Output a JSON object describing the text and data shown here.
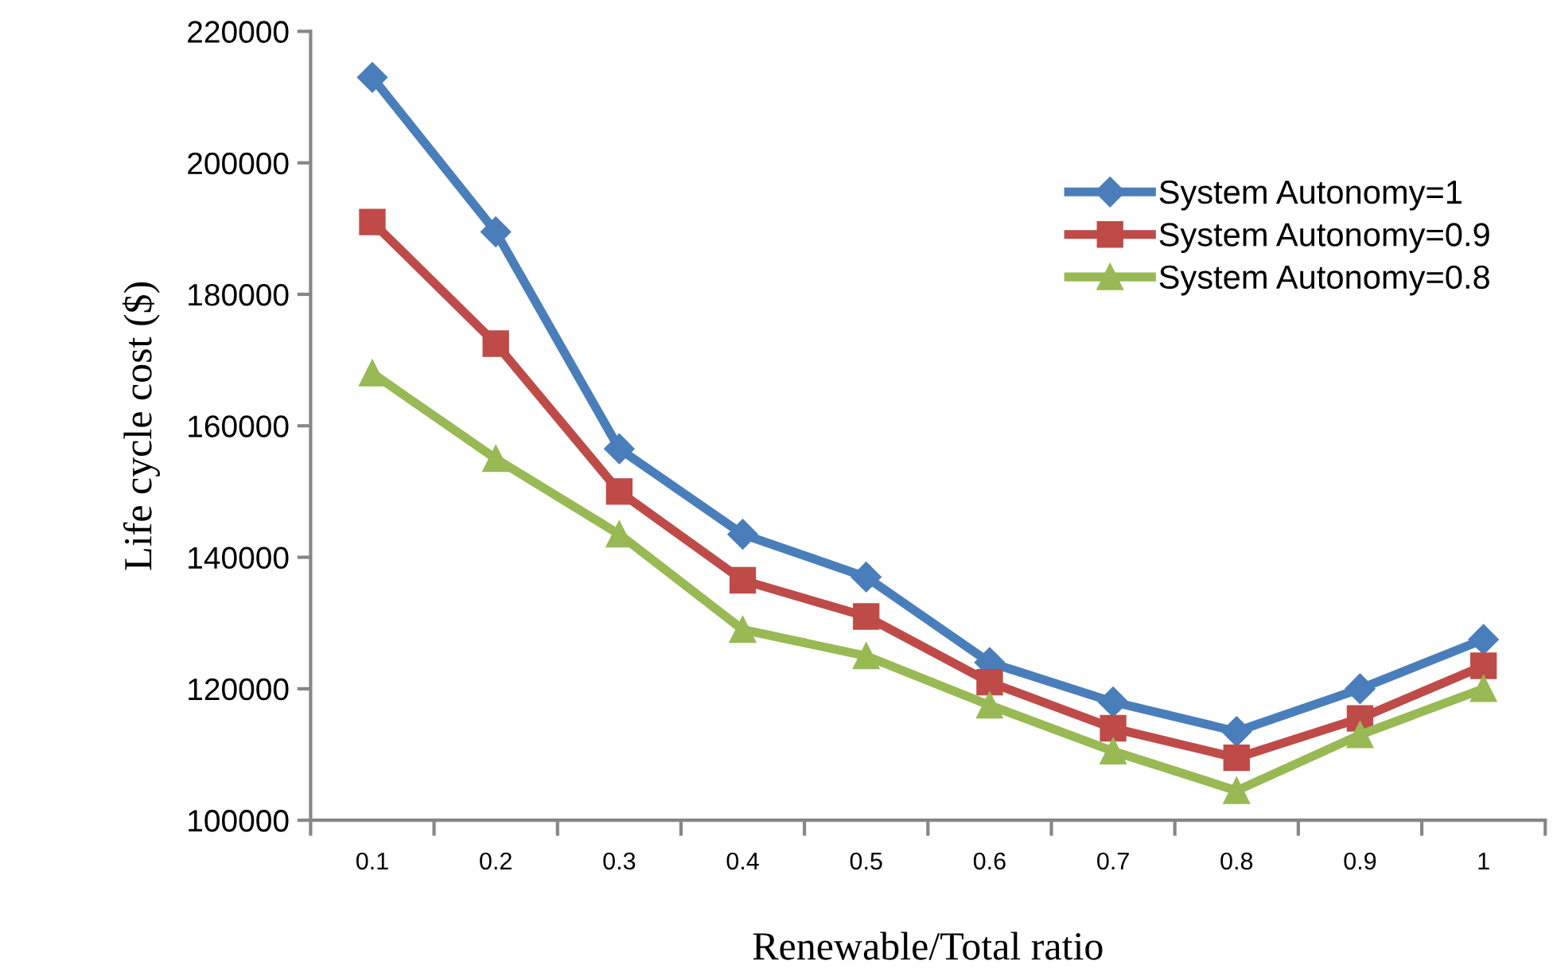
{
  "chart_data": {
    "type": "line",
    "xlabel": "Renewable/Total ratio",
    "ylabel": "Life cycle cost ($)",
    "categories": [
      "0.1",
      "0.2",
      "0.3",
      "0.4",
      "0.5",
      "0.6",
      "0.7",
      "0.8",
      "0.9",
      "1"
    ],
    "series": [
      {
        "name": "System Autonomy=1",
        "color": "#4a7ebb",
        "marker": "diamond",
        "values": [
          213000,
          189500,
          156500,
          143500,
          137000,
          124000,
          118000,
          113500,
          120000,
          127500
        ]
      },
      {
        "name": "System Autonomy=0.9",
        "color": "#be4b48",
        "marker": "square",
        "values": [
          191000,
          172500,
          150000,
          136500,
          131000,
          121000,
          114000,
          109500,
          115500,
          123500
        ]
      },
      {
        "name": "System Autonomy=0.8",
        "color": "#98b954",
        "marker": "triangle",
        "values": [
          168000,
          155000,
          143500,
          129000,
          125000,
          117500,
          110500,
          104500,
          113000,
          120000
        ]
      }
    ],
    "ylim": [
      100000,
      220000
    ],
    "yticks": [
      100000,
      120000,
      140000,
      160000,
      180000,
      200000,
      220000
    ],
    "grid": false,
    "legend": "top right",
    "line_style": "solid"
  }
}
